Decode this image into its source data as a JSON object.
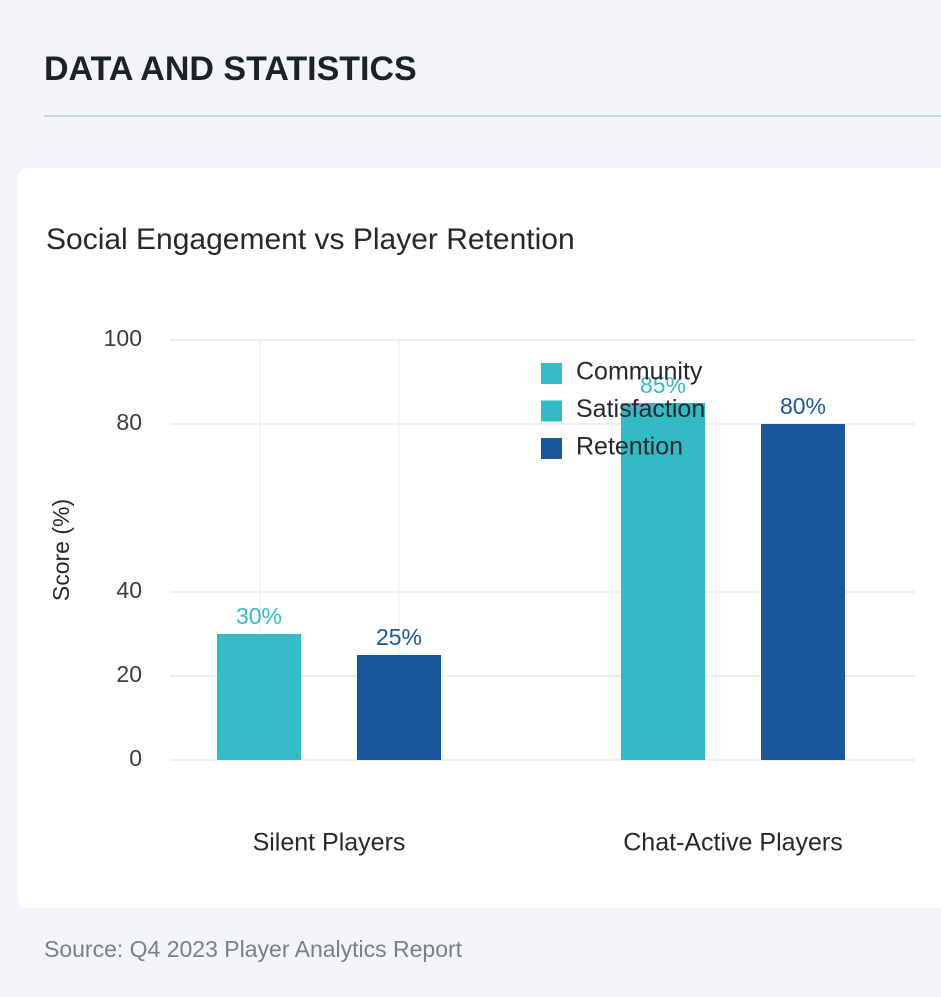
{
  "header": {
    "title": "DATA AND STATISTICS"
  },
  "chart_data": {
    "type": "bar",
    "title": "Social Engagement vs Player Retention",
    "y_label": "Score (%)",
    "categories": [
      "Silent Players",
      "Chat-Active Players"
    ],
    "series": [
      {
        "name": "Community",
        "color": "#35bcc7",
        "values": [
          30,
          null
        ],
        "value_labels": [
          "30%",
          null
        ]
      },
      {
        "name": "Satisfaction",
        "color": "#33bbc5",
        "values": [
          null,
          85
        ],
        "value_labels": [
          null,
          "85%"
        ]
      },
      {
        "name": "Retention",
        "color": "#1b579b",
        "values": [
          25,
          80
        ],
        "value_labels": [
          "25%",
          "80%"
        ]
      }
    ],
    "ylim": [
      0,
      100
    ],
    "yticks": [
      0,
      20,
      40,
      80,
      100
    ],
    "grid": true,
    "legend": "top-right",
    "source": "Source: Q4 2023 Player Analytics Report"
  }
}
